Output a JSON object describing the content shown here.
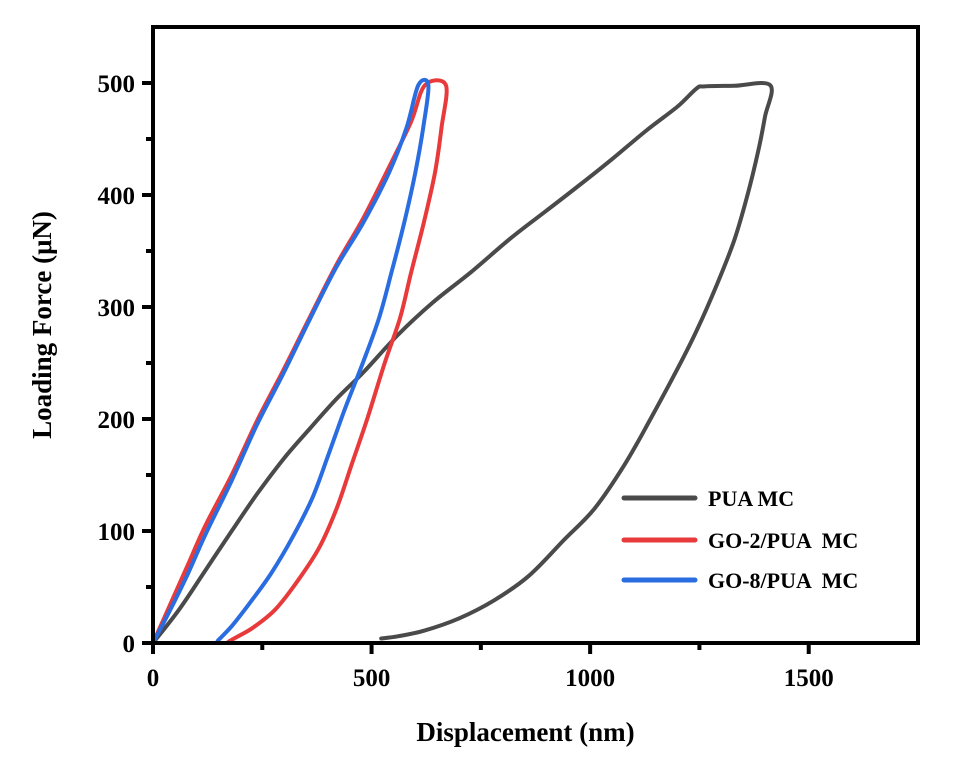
{
  "chart_data": {
    "type": "line",
    "title": "",
    "xlabel": "Displacement (nm)",
    "ylabel": "Loading Force (μN)",
    "xlim": [
      0,
      1750
    ],
    "ylim": [
      0,
      550
    ],
    "x_ticks": [
      0,
      500,
      1000,
      1500
    ],
    "x_tick_labels": [
      "0",
      "500",
      "1000",
      "1500"
    ],
    "x_minor_ticks": [
      250,
      750,
      1250
    ],
    "y_ticks": [
      0,
      100,
      200,
      300,
      400,
      500
    ],
    "y_tick_labels": [
      "0",
      "100",
      "200",
      "300",
      "400",
      "500"
    ],
    "y_minor_ticks": [
      50,
      150,
      250,
      350,
      450
    ],
    "grid": false,
    "legend_position": "bottom-right",
    "series": [
      {
        "name": "PUA MC",
        "color": "#4a4a4a",
        "points": [
          [
            0,
            0
          ],
          [
            60,
            30
          ],
          [
            120,
            65
          ],
          [
            180,
            100
          ],
          [
            238,
            133
          ],
          [
            300,
            165
          ],
          [
            360,
            192
          ],
          [
            420,
            218
          ],
          [
            482,
            242
          ],
          [
            560,
            275
          ],
          [
            640,
            304
          ],
          [
            727,
            331
          ],
          [
            820,
            362
          ],
          [
            900,
            386
          ],
          [
            973,
            408
          ],
          [
            1050,
            432
          ],
          [
            1130,
            458
          ],
          [
            1200,
            479
          ],
          [
            1243,
            495
          ],
          [
            1262,
            497
          ],
          [
            1330,
            497.5
          ],
          [
            1412,
            498
          ],
          [
            1400,
            470
          ],
          [
            1385,
            440
          ],
          [
            1360,
            400
          ],
          [
            1330,
            360
          ],
          [
            1290,
            320
          ],
          [
            1245,
            280
          ],
          [
            1200,
            245
          ],
          [
            1138,
            200
          ],
          [
            1080,
            160
          ],
          [
            1010,
            120
          ],
          [
            940,
            92
          ],
          [
            860,
            60
          ],
          [
            780,
            38
          ],
          [
            700,
            22
          ],
          [
            620,
            11
          ],
          [
            560,
            6
          ],
          [
            522,
            4
          ]
        ]
      },
      {
        "name": "GO-2/PUA  MC",
        "color": "#e83a3a",
        "points": [
          [
            0,
            0
          ],
          [
            40,
            35
          ],
          [
            80,
            70
          ],
          [
            120,
            105
          ],
          [
            180,
            150
          ],
          [
            240,
            200
          ],
          [
            300,
            245
          ],
          [
            360,
            292
          ],
          [
            420,
            338
          ],
          [
            482,
            380
          ],
          [
            540,
            425
          ],
          [
            590,
            465
          ],
          [
            622,
            498
          ],
          [
            670,
            498
          ],
          [
            660,
            460
          ],
          [
            645,
            420
          ],
          [
            620,
            376
          ],
          [
            590,
            330
          ],
          [
            565,
            290
          ],
          [
            530,
            250
          ],
          [
            490,
            200
          ],
          [
            455,
            160
          ],
          [
            420,
            120
          ],
          [
            380,
            85
          ],
          [
            330,
            55
          ],
          [
            280,
            30
          ],
          [
            230,
            14
          ],
          [
            190,
            5
          ],
          [
            172,
            1
          ]
        ]
      },
      {
        "name": "GO-8/PUA  MC",
        "color": "#2a6de0",
        "points": [
          [
            0,
            0
          ],
          [
            40,
            30
          ],
          [
            80,
            62
          ],
          [
            120,
            97
          ],
          [
            180,
            145
          ],
          [
            238,
            195
          ],
          [
            300,
            242
          ],
          [
            360,
            290
          ],
          [
            420,
            336
          ],
          [
            482,
            376
          ],
          [
            540,
            420
          ],
          [
            580,
            460
          ],
          [
            607,
            498
          ],
          [
            630,
            498
          ],
          [
            618,
            460
          ],
          [
            600,
            420
          ],
          [
            575,
            376
          ],
          [
            545,
            330
          ],
          [
            517,
            290
          ],
          [
            480,
            250
          ],
          [
            440,
            210
          ],
          [
            403,
            170
          ],
          [
            365,
            130
          ],
          [
            320,
            95
          ],
          [
            270,
            62
          ],
          [
            220,
            35
          ],
          [
            180,
            15
          ],
          [
            148,
            2
          ]
        ]
      }
    ]
  }
}
